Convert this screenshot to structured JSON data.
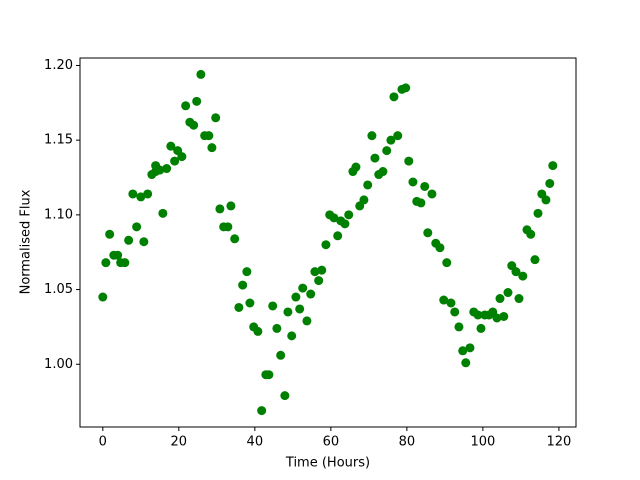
{
  "chart_data": {
    "type": "scatter",
    "color": "#008000",
    "x_label": "Time (Hours)",
    "y_label": "Normalised Flux",
    "x": [
      0,
      0.8,
      1.8,
      2.9,
      3.9,
      4.7,
      5.8,
      6.8,
      7.9,
      8.9,
      10,
      10.8,
      11.8,
      12.9,
      13.9,
      13.9,
      15,
      15.8,
      16.8,
      17.9,
      18.9,
      19.7,
      20.8,
      21.8,
      22.9,
      23.9,
      24.7,
      25.8,
      26.8,
      27.9,
      28.7,
      29.7,
      30.8,
      31.8,
      32.9,
      33.7,
      34.7,
      35.8,
      36.8,
      37.9,
      38.7,
      39.7,
      40.8,
      41.8,
      42.9,
      43.7,
      44.7,
      45.8,
      46.8,
      47.9,
      48.7,
      49.7,
      50.8,
      51.8,
      52.6,
      53.7,
      54.7,
      55.8,
      56.8,
      57.6,
      58.7,
      59.7,
      60.8,
      61.8,
      62.6,
      63.7,
      64.7,
      65.8,
      66.6,
      67.6,
      68.7,
      69.7,
      70.8,
      71.6,
      72.6,
      73.7,
      74.7,
      75.8,
      76.6,
      77.6,
      78.7,
      79.7,
      80.5,
      81.6,
      82.6,
      83.7,
      84.7,
      85.5,
      86.6,
      87.6,
      88.7,
      89.7,
      90.5,
      91.6,
      92.6,
      93.7,
      94.7,
      95.5,
      96.6,
      97.6,
      98.7,
      99.5,
      100.5,
      101.6,
      102.6,
      103.7,
      104.5,
      105.5,
      106.6,
      107.6,
      108.7,
      109.5,
      110.5,
      111.6,
      112.6,
      113.7,
      114.5,
      115.5,
      116.6,
      117.6,
      118.4
    ],
    "values": [
      1.045,
      1.068,
      1.087,
      1.073,
      1.073,
      1.068,
      1.068,
      1.083,
      1.114,
      1.092,
      1.112,
      1.082,
      1.114,
      1.127,
      1.133,
      1.129,
      1.13,
      1.101,
      1.131,
      1.146,
      1.136,
      1.143,
      1.139,
      1.173,
      1.162,
      1.16,
      1.176,
      1.194,
      1.153,
      1.153,
      1.145,
      1.165,
      1.104,
      1.092,
      1.092,
      1.106,
      1.084,
      1.038,
      1.053,
      1.062,
      1.041,
      1.025,
      1.022,
      0.969,
      0.993,
      0.993,
      1.039,
      1.024,
      1.006,
      0.979,
      1.035,
      1.019,
      1.045,
      1.037,
      1.051,
      1.029,
      1.047,
      1.062,
      1.056,
      1.063,
      1.08,
      1.1,
      1.098,
      1.086,
      1.096,
      1.094,
      1.1,
      1.129,
      1.132,
      1.106,
      1.11,
      1.12,
      1.153,
      1.138,
      1.127,
      1.129,
      1.143,
      1.15,
      1.179,
      1.153,
      1.184,
      1.185,
      1.136,
      1.122,
      1.109,
      1.108,
      1.119,
      1.088,
      1.114,
      1.081,
      1.078,
      1.043,
      1.068,
      1.041,
      1.035,
      1.025,
      1.009,
      1.001,
      1.011,
      1.035,
      1.033,
      1.024,
      1.033,
      1.033,
      1.035,
      1.031,
      1.044,
      1.032,
      1.048,
      1.066,
      1.062,
      1.044,
      1.059,
      1.09,
      1.087,
      1.07,
      1.101,
      1.114,
      1.11,
      1.121,
      1.133
    ],
    "xlim": [
      -6,
      124.5
    ],
    "ylim": [
      0.958,
      1.205
    ],
    "xticks": [
      0,
      20,
      40,
      60,
      80,
      100,
      120
    ],
    "yticks": [
      {
        "value": 1.0,
        "label": "1.00"
      },
      {
        "value": 1.05,
        "label": "1.05"
      },
      {
        "value": 1.1,
        "label": "1.10"
      },
      {
        "value": 1.15,
        "label": "1.15"
      },
      {
        "value": 1.2,
        "label": "1.20"
      }
    ]
  }
}
